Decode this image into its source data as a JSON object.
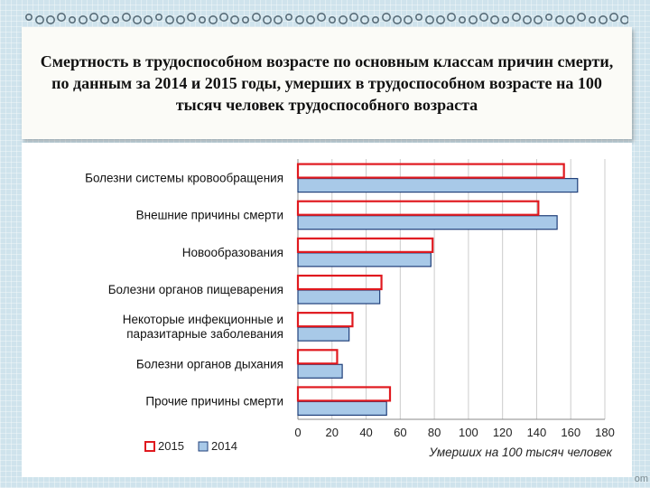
{
  "title": "Смертность в трудоспособном возрасте по основным классам причин смерти, по данным за 2014 и 2015 годы, умерших в трудоспособном возрасте на 100 тысяч человек трудоспособного возраста",
  "corner_text": "om",
  "colors": {
    "bar_2015_stroke": "#e0191f",
    "bar_2014_fill": "#a8c9e8",
    "bar_2014_stroke": "#1f3f7a",
    "gridline": "#cccccc",
    "background": "#cfe3ec"
  },
  "chart_data": {
    "type": "bar",
    "orientation": "horizontal",
    "categories": [
      "Болезни системы кровообращения",
      "Внешние причины смерти",
      "Новообразования",
      "Болезни органов пищеварения",
      "Некоторые инфекционные и паразитарные заболевания",
      "Болезни органов дыхания",
      "Прочие причины смерти"
    ],
    "series": [
      {
        "name": "2015",
        "values": [
          156,
          141,
          79,
          49,
          32,
          23,
          54
        ]
      },
      {
        "name": "2014",
        "values": [
          164,
          152,
          78,
          48,
          30,
          26,
          52
        ]
      }
    ],
    "xlabel": "Умерших на 100 тысяч человек",
    "xlim": [
      0,
      180
    ],
    "xticks": [
      "0",
      "20",
      "40",
      "60",
      "80",
      "100",
      "120",
      "140",
      "160",
      "180"
    ],
    "grid": true,
    "legend_position": "bottom-left"
  }
}
